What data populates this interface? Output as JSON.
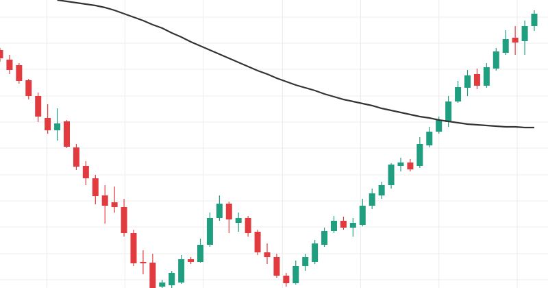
{
  "chart_data": {
    "type": "candlestick",
    "x": [
      0,
      1,
      2,
      3,
      4,
      5,
      6,
      7,
      8,
      9,
      10,
      11,
      12,
      13,
      14,
      15,
      16,
      17,
      18,
      19,
      20,
      21,
      22,
      23,
      24,
      25,
      26,
      27,
      28,
      29,
      30,
      31,
      32,
      33,
      34,
      35,
      36,
      37,
      38,
      39,
      40,
      41,
      42,
      43,
      44,
      45,
      46,
      47,
      48,
      49,
      50,
      51,
      52,
      53,
      54,
      55,
      56
    ],
    "open": [
      347,
      333,
      325,
      303,
      280,
      248,
      230,
      243,
      205,
      178,
      160,
      135,
      125,
      118,
      80,
      38,
      37,
      2,
      4,
      8,
      42,
      38,
      63,
      102,
      123,
      95,
      102,
      82,
      52,
      45,
      18,
      7,
      32,
      38,
      63,
      83,
      98,
      88,
      92,
      120,
      135,
      150,
      178,
      183,
      178,
      208,
      228,
      242,
      272,
      292,
      312,
      295,
      320,
      343,
      365,
      360,
      382
    ],
    "high": [
      350,
      340,
      328,
      305,
      285,
      268,
      262,
      245,
      210,
      185,
      165,
      150,
      148,
      130,
      85,
      55,
      50,
      12,
      25,
      48,
      45,
      72,
      110,
      135,
      126,
      110,
      105,
      85,
      65,
      50,
      22,
      40,
      50,
      70,
      88,
      105,
      104,
      102,
      130,
      145,
      155,
      182,
      190,
      188,
      220,
      235,
      250,
      280,
      302,
      318,
      320,
      328,
      350,
      376,
      382,
      390,
      405
    ],
    "low": [
      330,
      312,
      298,
      275,
      242,
      225,
      215,
      204,
      172,
      150,
      122,
      94,
      110,
      75,
      32,
      20,
      0,
      0,
      0,
      6,
      35,
      37,
      60,
      98,
      80,
      82,
      75,
      48,
      35,
      15,
      2,
      5,
      25,
      35,
      60,
      80,
      85,
      75,
      90,
      115,
      130,
      145,
      170,
      170,
      175,
      205,
      225,
      235,
      270,
      280,
      290,
      292,
      317,
      340,
      340,
      340,
      375
    ],
    "close": [
      335,
      318,
      302,
      280,
      250,
      230,
      240,
      206,
      177,
      160,
      134,
      120,
      118,
      80,
      36,
      36,
      0,
      8,
      22,
      42,
      38,
      63,
      102,
      123,
      100,
      102,
      80,
      52,
      45,
      18,
      7,
      32,
      45,
      65,
      83,
      98,
      88,
      95,
      120,
      138,
      150,
      180,
      183,
      173,
      210,
      228,
      245,
      272,
      293,
      310,
      295,
      322,
      345,
      363,
      358,
      382,
      400
    ],
    "up_color": "#1f9e80",
    "down_color": "#e23b3f",
    "line": {
      "color": "#333333",
      "values": [
        null,
        null,
        null,
        null,
        null,
        null,
        420,
        418,
        416,
        414,
        412,
        409,
        405,
        400,
        395,
        390,
        384,
        379,
        372,
        366,
        359,
        353,
        347,
        341,
        335,
        329,
        323,
        317,
        312,
        306,
        301,
        296,
        292,
        288,
        283,
        279,
        275,
        272,
        269,
        266,
        262,
        259,
        256,
        253,
        250,
        248,
        245,
        243,
        241,
        239,
        238,
        237,
        236,
        235,
        235,
        234,
        234
      ]
    },
    "xlim": [
      0,
      56
    ],
    "ylim": [
      0,
      420
    ],
    "xticks": [
      4.9,
      13.1,
      21.3,
      29.6,
      37.8,
      46,
      54.2
    ],
    "yticks": [
      12,
      50,
      89,
      127,
      165,
      204,
      242,
      280,
      319,
      357,
      395
    ],
    "grid": true
  }
}
